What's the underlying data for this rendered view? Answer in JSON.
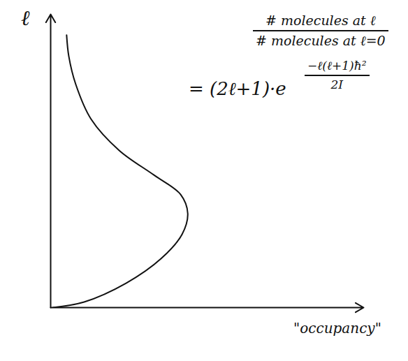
{
  "chart_data": {
    "type": "line",
    "x_label": "\"occupancy\"",
    "y_label": "ℓ",
    "x": [
      0.07,
      1.07,
      2.41,
      3.53,
      4.2,
      4.38,
      4.15,
      3.3,
      2.19,
      1.29,
      0.8,
      0.58,
      0.51
    ],
    "values": [
      0,
      0.19,
      0.83,
      1.67,
      2.5,
      3.21,
      3.86,
      4.52,
      5.36,
      6.43,
      7.62,
      8.57,
      9.29
    ],
    "color": "#111111",
    "xlim": [
      0,
      10
    ],
    "ylim": [
      0,
      10
    ],
    "xticks": [],
    "yticks": [],
    "tick_labels": false,
    "grid": false,
    "formula": {
      "numerator": "# molecules at ℓ",
      "denominator": "# molecules at ℓ=0",
      "rhs": "= (2ℓ+1)·e",
      "exponent_numerator": "−ℓ(ℓ+1)ħ²",
      "exponent_denominator": "2I"
    }
  }
}
